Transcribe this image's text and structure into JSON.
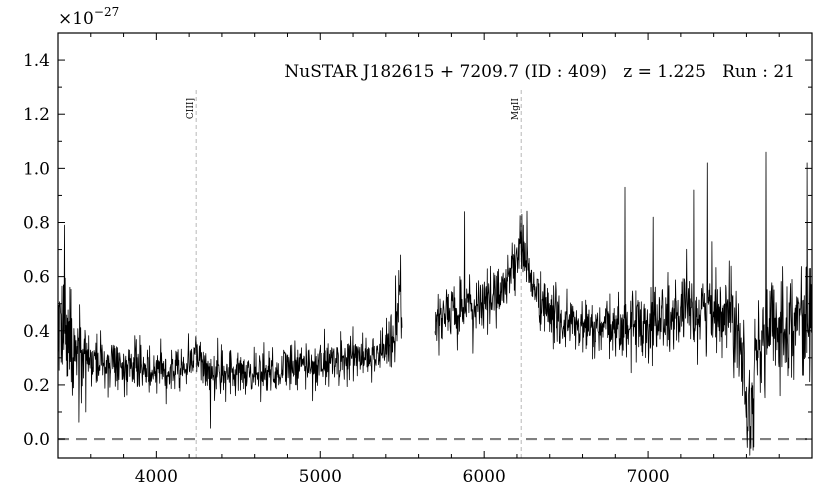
{
  "chart_data": {
    "type": "line",
    "title": "NuSTAR J182615 + 7209.7 (ID : 409)   z = 1.225   Run : 21",
    "xlabel": "",
    "ylabel": "",
    "y_multiplier": "×10⁻²⁷",
    "xlim": [
      3400,
      8000
    ],
    "ylim": [
      -0.07,
      1.5
    ],
    "x_ticks": [
      4000,
      5000,
      6000,
      7000
    ],
    "y_ticks": [
      0.0,
      0.2,
      0.4,
      0.6,
      0.8,
      1.0,
      1.2,
      1.4
    ],
    "x_tick_labels": [
      "4000",
      "5000",
      "6000",
      "7000"
    ],
    "y_tick_labels": [
      "0.0",
      "0.2",
      "0.4",
      "0.6",
      "0.8",
      "1.0",
      "1.2",
      "1.4"
    ],
    "grid": false,
    "zero_line": {
      "y": 0.0,
      "style": "dashed",
      "color": "#808080"
    },
    "emission_lines": [
      {
        "label": "CIII]",
        "x": 4243
      },
      {
        "label": "MgII",
        "x": 6226
      }
    ],
    "series": [
      {
        "color": "#000000",
        "segments": [
          {
            "x": [
              3400,
              3450,
              3500,
              3600,
              3700,
              3800,
              3900,
              4000,
              4100,
              4200,
              4243,
              4300,
              4400,
              4500,
              4600,
              4700,
              4800,
              4900,
              5000,
              5100,
              5200,
              5300,
              5400,
              5450,
              5480,
              5500
            ],
            "y": [
              0.45,
              0.34,
              0.32,
              0.29,
              0.28,
              0.27,
              0.26,
              0.26,
              0.26,
              0.28,
              0.33,
              0.25,
              0.24,
              0.24,
              0.25,
              0.25,
              0.26,
              0.27,
              0.28,
              0.29,
              0.3,
              0.31,
              0.33,
              0.37,
              0.5,
              0.4
            ]
          },
          {
            "x": [
              5700,
              5800,
              5900,
              6000,
              6100,
              6150,
              6200,
              6226,
              6260,
              6300,
              6400,
              6500,
              6600,
              6700,
              6800,
              6900,
              7000,
              7100,
              7200,
              7300,
              7400,
              7500,
              7550,
              7600,
              7620,
              7650,
              7700,
              7800,
              7900,
              8000
            ],
            "y": [
              0.44,
              0.47,
              0.48,
              0.5,
              0.55,
              0.6,
              0.68,
              0.72,
              0.66,
              0.55,
              0.46,
              0.43,
              0.41,
              0.4,
              0.41,
              0.42,
              0.43,
              0.44,
              0.45,
              0.47,
              0.48,
              0.47,
              0.44,
              0.2,
              0.08,
              0.25,
              0.38,
              0.42,
              0.44,
              0.45
            ]
          }
        ],
        "noise": [
          {
            "x0": 3400,
            "x1": 3550,
            "sigma": 0.11
          },
          {
            "x0": 3550,
            "x1": 5400,
            "sigma": 0.06
          },
          {
            "x0": 5400,
            "x1": 5500,
            "sigma": 0.09
          },
          {
            "x0": 5700,
            "x1": 6900,
            "sigma": 0.07
          },
          {
            "x0": 6900,
            "x1": 7500,
            "sigma": 0.1
          },
          {
            "x0": 7500,
            "x1": 8000,
            "sigma": 0.13
          }
        ],
        "spikes": [
          {
            "x": 3440,
            "y": 0.79
          },
          {
            "x": 3570,
            "y": 0.1
          },
          {
            "x": 4330,
            "y": 0.04
          },
          {
            "x": 5490,
            "y": 0.68
          },
          {
            "x": 5880,
            "y": 0.84
          },
          {
            "x": 6230,
            "y": 0.83
          },
          {
            "x": 6860,
            "y": 0.93
          },
          {
            "x": 7030,
            "y": 0.82
          },
          {
            "x": 7280,
            "y": 0.92
          },
          {
            "x": 7360,
            "y": 1.02
          },
          {
            "x": 7720,
            "y": 1.06
          },
          {
            "x": 7970,
            "y": 1.02
          },
          {
            "x": 7610,
            "y": 0.03
          }
        ]
      }
    ]
  }
}
